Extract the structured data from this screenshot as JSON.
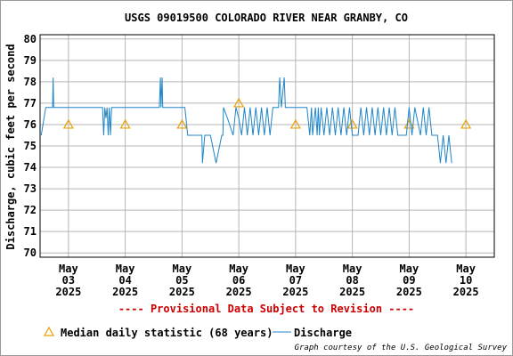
{
  "chart_data": {
    "type": "line",
    "title": "USGS 09019500 COLORADO RIVER NEAR GRANBY, CO",
    "xlabel": "",
    "ylabel": "Discharge, cubic feet per second",
    "ylim": [
      69.8,
      80.2
    ],
    "yticks": [
      70,
      71,
      72,
      73,
      74,
      75,
      76,
      77,
      78,
      79,
      80
    ],
    "xlim_days": [
      2.5,
      10.5
    ],
    "x_ticks": [
      {
        "day": 3,
        "month": "May",
        "date": "03",
        "year": "2025"
      },
      {
        "day": 4,
        "month": "May",
        "date": "04",
        "year": "2025"
      },
      {
        "day": 5,
        "month": "May",
        "date": "05",
        "year": "2025"
      },
      {
        "day": 6,
        "month": "May",
        "date": "06",
        "year": "2025"
      },
      {
        "day": 7,
        "month": "May",
        "date": "07",
        "year": "2025"
      },
      {
        "day": 8,
        "month": "May",
        "date": "08",
        "year": "2025"
      },
      {
        "day": 9,
        "month": "May",
        "date": "09",
        "year": "2025"
      },
      {
        "day": 10,
        "month": "May",
        "date": "10",
        "year": "2025"
      }
    ],
    "grid": true,
    "provisional_note": "---- Provisional Data Subject to Revision ----",
    "series": [
      {
        "name": "Median daily statistic (68 years)",
        "kind": "marker-triangle",
        "color": "#e8a000",
        "x": [
          3,
          4,
          5,
          6,
          7,
          8,
          9,
          10
        ],
        "values": [
          76.0,
          76.0,
          76.0,
          77.0,
          76.0,
          76.0,
          76.0,
          76.0
        ]
      },
      {
        "name": "Discharge",
        "kind": "line",
        "color": "#1f86c8",
        "x": [
          2.52,
          2.6,
          2.72,
          2.73,
          2.74,
          2.9,
          3.3,
          3.6,
          3.62,
          3.64,
          3.66,
          3.68,
          3.7,
          3.72,
          3.74,
          3.76,
          3.9,
          4.1,
          4.3,
          4.5,
          4.6,
          4.62,
          4.63,
          4.65,
          4.66,
          4.8,
          4.9,
          5.05,
          5.1,
          5.2,
          5.3,
          5.35,
          5.36,
          5.4,
          5.5,
          5.6,
          5.7,
          5.72,
          5.73,
          5.8,
          5.9,
          5.95,
          6.0,
          6.05,
          6.1,
          6.15,
          6.2,
          6.25,
          6.3,
          6.35,
          6.4,
          6.45,
          6.5,
          6.55,
          6.6,
          6.7,
          6.72,
          6.75,
          6.8,
          6.82,
          6.85,
          6.9,
          7.0,
          7.1,
          7.2,
          7.25,
          7.28,
          7.3,
          7.35,
          7.38,
          7.4,
          7.42,
          7.45,
          7.5,
          7.55,
          7.6,
          7.65,
          7.7,
          7.75,
          7.8,
          7.85,
          7.9,
          7.95,
          8.0,
          8.1,
          8.15,
          8.2,
          8.25,
          8.3,
          8.35,
          8.4,
          8.45,
          8.5,
          8.55,
          8.6,
          8.65,
          8.7,
          8.75,
          8.8,
          8.85,
          8.9,
          8.95,
          9.0,
          9.05,
          9.1,
          9.2,
          9.25,
          9.3,
          9.35,
          9.4,
          9.5,
          9.55,
          9.6,
          9.65,
          9.7,
          9.75
        ],
        "values": [
          75.5,
          76.8,
          76.8,
          78.2,
          76.8,
          76.8,
          76.8,
          76.8,
          75.5,
          76.8,
          76.3,
          76.8,
          75.5,
          76.8,
          75.5,
          76.8,
          76.8,
          76.8,
          76.8,
          76.8,
          76.8,
          78.2,
          76.8,
          78.2,
          76.8,
          76.8,
          76.8,
          76.8,
          75.5,
          75.5,
          75.5,
          75.5,
          74.2,
          75.5,
          75.5,
          74.2,
          75.5,
          75.5,
          76.8,
          76.3,
          75.5,
          76.8,
          76.3,
          75.5,
          76.8,
          75.5,
          76.8,
          75.5,
          76.8,
          75.5,
          76.8,
          75.5,
          76.8,
          75.5,
          76.8,
          76.8,
          78.2,
          76.8,
          78.2,
          76.8,
          76.8,
          76.8,
          76.8,
          76.8,
          76.8,
          75.5,
          76.8,
          75.5,
          76.8,
          75.5,
          76.8,
          75.5,
          76.8,
          75.5,
          76.8,
          75.5,
          76.8,
          75.5,
          76.8,
          75.5,
          76.8,
          75.5,
          76.8,
          75.5,
          75.5,
          76.8,
          75.5,
          76.8,
          75.5,
          76.8,
          75.5,
          76.8,
          75.5,
          76.8,
          75.5,
          76.8,
          75.5,
          76.8,
          75.5,
          75.5,
          75.5,
          75.5,
          76.8,
          75.5,
          76.8,
          75.5,
          76.8,
          75.5,
          76.8,
          75.5,
          75.5,
          74.2,
          75.5,
          74.2,
          75.5,
          74.2
        ]
      }
    ],
    "legend": {
      "placement": "bottom",
      "median_label": "Median daily statistic (68 years)",
      "discharge_label": "Discharge"
    },
    "credit": "Graph courtesy of the U.S. Geological Survey"
  },
  "colors": {
    "discharge": "#1f86c8",
    "median": "#e8a000",
    "provisional": "#cc0000",
    "grid": "#b4b4b4"
  }
}
